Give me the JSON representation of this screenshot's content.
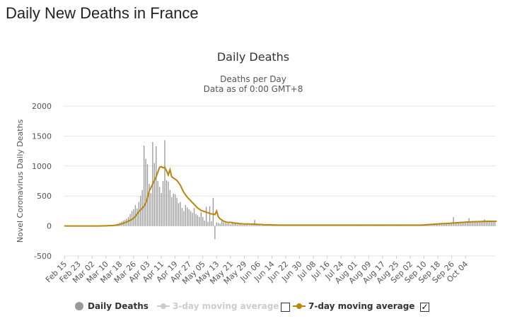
{
  "page": {
    "title": "Daily New Deaths in France"
  },
  "chart_data": {
    "type": "bar",
    "title": "Daily Deaths",
    "subtitle_1": "Deaths per Day",
    "subtitle_2": "Data as of 0:00 GMT+8",
    "ylabel": "Novel Coronavirus Daily Deaths",
    "xlabel": "",
    "ylim": [
      -500,
      2000
    ],
    "yticks": [
      -500,
      0,
      500,
      1000,
      1500,
      2000
    ],
    "grid": true,
    "start_date": "2020-02-15",
    "xtick_labels": [
      "Feb 15",
      "Feb 23",
      "Mar 02",
      "Mar 10",
      "Mar 18",
      "Mar 26",
      "Apr 03",
      "Apr 11",
      "Apr 19",
      "Apr 27",
      "May 05",
      "May 13",
      "May 21",
      "May 29",
      "Jun 06",
      "Jun 14",
      "Jun 22",
      "Jun 30",
      "Jul 08",
      "Jul 16",
      "Jul 24",
      "Aug 01",
      "Aug 09",
      "Aug 17",
      "Aug 25",
      "Sep 02",
      "Sep 10",
      "Sep 18",
      "Sep 26",
      "Oct 04"
    ],
    "series": [
      {
        "name": "Daily Deaths",
        "type": "bar",
        "color": "#9a9a9a",
        "values": [
          0,
          0,
          0,
          0,
          0,
          0,
          0,
          0,
          0,
          0,
          0,
          0,
          0,
          0,
          0,
          0,
          0,
          0,
          0,
          0,
          1,
          1,
          2,
          3,
          3,
          4,
          6,
          10,
          15,
          20,
          28,
          40,
          55,
          70,
          90,
          100,
          120,
          150,
          200,
          250,
          280,
          350,
          290,
          400,
          500,
          600,
          1340,
          1120,
          1030,
          700,
          550,
          1400,
          1050,
          1330,
          750,
          650,
          550,
          750,
          1430,
          760,
          740,
          600,
          480,
          540,
          530,
          470,
          380,
          400,
          300,
          250,
          350,
          310,
          280,
          250,
          220,
          300,
          200,
          180,
          150,
          230,
          150,
          90,
          320,
          70,
          330,
          80,
          470,
          -220,
          60,
          50,
          40,
          80,
          60,
          50,
          40,
          45,
          30,
          70,
          35,
          40,
          25,
          30,
          30,
          20,
          25,
          35,
          20,
          15,
          20,
          25,
          100,
          20,
          15,
          15,
          10,
          15,
          15,
          10,
          10,
          15,
          10,
          10,
          10,
          10,
          10,
          10,
          10,
          10,
          10,
          10,
          10,
          10,
          10,
          10,
          10,
          10,
          10,
          10,
          10,
          10,
          10,
          10,
          10,
          10,
          10,
          10,
          10,
          10,
          10,
          10,
          10,
          10,
          10,
          10,
          10,
          10,
          10,
          10,
          10,
          10,
          10,
          10,
          10,
          10,
          10,
          10,
          10,
          10,
          10,
          10,
          10,
          10,
          10,
          10,
          10,
          10,
          10,
          10,
          10,
          10,
          10,
          10,
          10,
          10,
          10,
          10,
          10,
          10,
          10,
          10,
          10,
          10,
          10,
          10,
          10,
          10,
          10,
          10,
          10,
          10,
          10,
          10,
          10,
          10,
          10,
          10,
          20,
          20,
          20,
          20,
          20,
          20,
          20,
          30,
          30,
          30,
          30,
          30,
          30,
          30,
          40,
          40,
          40,
          40,
          40,
          150,
          40,
          50,
          50,
          50,
          60,
          60,
          60,
          60,
          130,
          60,
          60,
          70,
          70,
          70,
          70,
          70,
          70,
          110,
          70,
          70,
          70,
          80,
          80,
          80
        ]
      },
      {
        "name": "3-day moving average",
        "type": "line",
        "color": "#cccccc",
        "enabled": false,
        "values": []
      },
      {
        "name": "7-day moving average",
        "type": "line",
        "color": "#b8860b",
        "enabled": true,
        "values": [
          0,
          0,
          0,
          0,
          0,
          0,
          0,
          0,
          0,
          0,
          0,
          0,
          0,
          0,
          0,
          0,
          0,
          0,
          0,
          0,
          0,
          1,
          1,
          2,
          3,
          4,
          5,
          6,
          8,
          11,
          15,
          20,
          27,
          36,
          46,
          56,
          66,
          80,
          95,
          110,
          130,
          160,
          200,
          240,
          270,
          300,
          330,
          380,
          470,
          580,
          640,
          700,
          760,
          820,
          900,
          980,
          990,
          970,
          980,
          920,
          850,
          940,
          820,
          800,
          780,
          760,
          720,
          680,
          620,
          560,
          520,
          480,
          450,
          420,
          390,
          360,
          330,
          300,
          280,
          260,
          250,
          240,
          230,
          220,
          210,
          200,
          200,
          190,
          250,
          150,
          120,
          100,
          80,
          70,
          60,
          60,
          60,
          55,
          50,
          45,
          45,
          40,
          38,
          36,
          35,
          34,
          33,
          32,
          32,
          30,
          30,
          28,
          26,
          25,
          24,
          22,
          21,
          20,
          20,
          20,
          18,
          17,
          16,
          16,
          15,
          15,
          15,
          14,
          14,
          14,
          14,
          14,
          14,
          14,
          14,
          14,
          14,
          14,
          14,
          14,
          14,
          14,
          14,
          14,
          14,
          14,
          14,
          14,
          14,
          14,
          14,
          14,
          14,
          14,
          14,
          14,
          14,
          14,
          14,
          14,
          14,
          14,
          14,
          14,
          14,
          14,
          14,
          14,
          14,
          14,
          14,
          14,
          14,
          14,
          14,
          14,
          14,
          14,
          14,
          14,
          14,
          14,
          14,
          14,
          14,
          14,
          14,
          14,
          14,
          14,
          14,
          14,
          14,
          14,
          14,
          14,
          14,
          14,
          14,
          14,
          14,
          14,
          14,
          14,
          14,
          14,
          14,
          16,
          18,
          20,
          22,
          24,
          26,
          28,
          30,
          32,
          34,
          36,
          38,
          40,
          40,
          42,
          44,
          46,
          48,
          50,
          52,
          54,
          56,
          58,
          60,
          62,
          64,
          66,
          66,
          68,
          70,
          70,
          72,
          72,
          74,
          74,
          76,
          76,
          78,
          78,
          78,
          78,
          78,
          78,
          78
        ]
      }
    ],
    "legend": {
      "daily": "Daily Deaths",
      "ma3": "3-day moving average",
      "ma7": "7-day moving average",
      "ma3_checked": false,
      "ma7_checked": true,
      "ma7_check_mark": "✓"
    }
  }
}
